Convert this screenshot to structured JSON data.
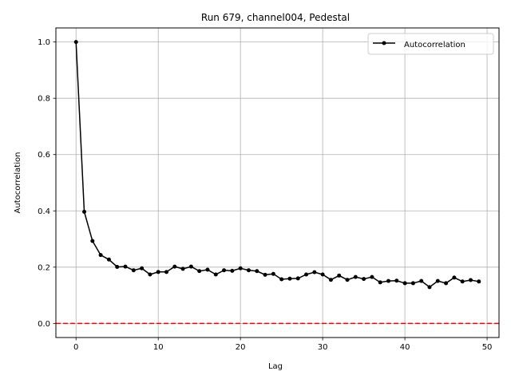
{
  "chart_data": {
    "type": "line",
    "title": "Run 679, channel004, Pedestal",
    "xlabel": "Lag",
    "ylabel": "Autocorrelation",
    "xlim": [
      -2.45,
      51.45
    ],
    "ylim": [
      -0.05,
      1.05
    ],
    "xticks": [
      0,
      10,
      20,
      30,
      40,
      50
    ],
    "yticks": [
      0.0,
      0.2,
      0.4,
      0.6,
      0.8,
      1.0
    ],
    "xtick_labels": [
      "0",
      "10",
      "20",
      "30",
      "40",
      "50"
    ],
    "ytick_labels": [
      "0.0",
      "0.2",
      "0.4",
      "0.6",
      "0.8",
      "1.0"
    ],
    "grid": true,
    "legend_position": "top-right",
    "series": [
      {
        "name": "Autocorrelation",
        "color": "#000000",
        "marker": "circle",
        "x": [
          0,
          1,
          2,
          3,
          4,
          5,
          6,
          7,
          8,
          9,
          10,
          11,
          12,
          13,
          14,
          15,
          16,
          17,
          18,
          19,
          20,
          21,
          22,
          23,
          24,
          25,
          26,
          27,
          28,
          29,
          30,
          31,
          32,
          33,
          34,
          35,
          36,
          37,
          38,
          39,
          40,
          41,
          42,
          43,
          44,
          45,
          46,
          47,
          48,
          49
        ],
        "y": [
          1.0,
          0.397,
          0.293,
          0.243,
          0.227,
          0.201,
          0.202,
          0.189,
          0.196,
          0.174,
          0.183,
          0.183,
          0.202,
          0.194,
          0.202,
          0.186,
          0.191,
          0.174,
          0.189,
          0.187,
          0.196,
          0.189,
          0.186,
          0.173,
          0.176,
          0.157,
          0.159,
          0.16,
          0.174,
          0.182,
          0.174,
          0.155,
          0.17,
          0.155,
          0.165,
          0.158,
          0.165,
          0.146,
          0.151,
          0.152,
          0.143,
          0.143,
          0.151,
          0.129,
          0.151,
          0.143,
          0.163,
          0.149,
          0.154,
          0.149
        ]
      }
    ],
    "reference_line": {
      "y": 0.0,
      "color": "#ff0000",
      "style": "dashed"
    }
  }
}
